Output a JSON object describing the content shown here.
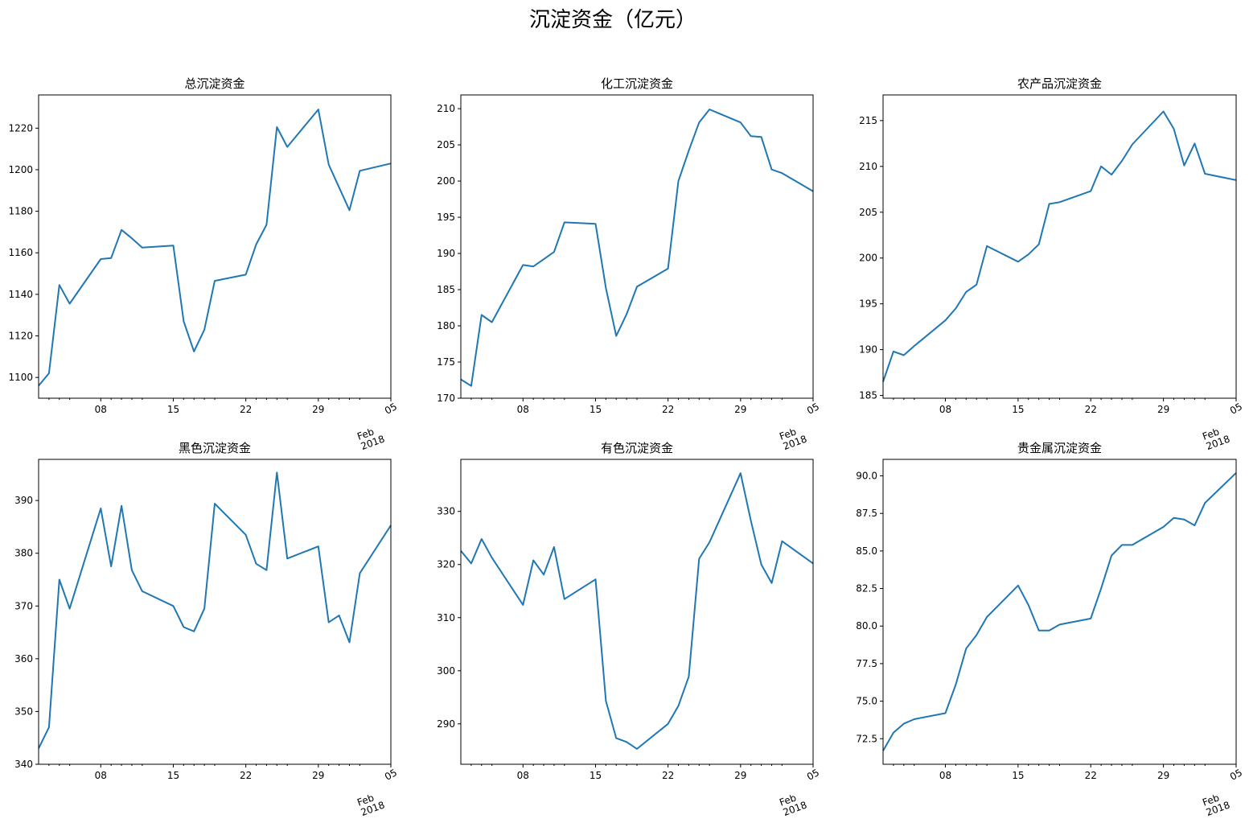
{
  "figure": {
    "title": "沉淀资金（亿元）"
  },
  "chart_data": [
    {
      "type": "line",
      "title": "总沉淀资金",
      "x": [
        "01-02",
        "01-03",
        "01-04",
        "01-05",
        "01-08",
        "01-09",
        "01-10",
        "01-11",
        "01-12",
        "01-15",
        "01-16",
        "01-17",
        "01-18",
        "01-19",
        "01-22",
        "01-23",
        "01-24",
        "01-25",
        "01-26",
        "01-29",
        "01-30",
        "01-31",
        "02-01",
        "02-02",
        "02-05"
      ],
      "values": [
        1096,
        1102,
        1144.5,
        1135.5,
        1157,
        1157.5,
        1171,
        1167,
        1162.5,
        1163.5,
        1127,
        1112.5,
        1123,
        1146.5,
        1149.5,
        1164,
        1173.5,
        1220.5,
        1211,
        1229,
        1202.5,
        1191.5,
        1180.5,
        1199.5,
        1203
      ],
      "ylim": [
        1090,
        1236
      ],
      "yticks": [
        1100,
        1120,
        1140,
        1160,
        1180,
        1200,
        1220
      ],
      "ytick_labels": [
        "1100",
        "1120",
        "1140",
        "1160",
        "1180",
        "1200",
        "1220"
      ],
      "xticks": [
        "08",
        "15",
        "22",
        "29",
        "05"
      ],
      "xsub": [
        "Feb",
        "2018"
      ]
    },
    {
      "type": "line",
      "title": "化工沉淀资金",
      "x": [
        "01-02",
        "01-03",
        "01-04",
        "01-05",
        "01-08",
        "01-09",
        "01-10",
        "01-11",
        "01-12",
        "01-15",
        "01-16",
        "01-17",
        "01-18",
        "01-19",
        "01-22",
        "01-23",
        "01-24",
        "01-25",
        "01-26",
        "01-29",
        "01-30",
        "01-31",
        "02-01",
        "02-02",
        "02-05"
      ],
      "values": [
        172.6,
        171.7,
        181.5,
        180.5,
        188.4,
        188.2,
        189.2,
        190.2,
        194.3,
        194.1,
        185.2,
        178.6,
        181.6,
        185.4,
        187.9,
        200,
        204.2,
        208.1,
        209.9,
        208.1,
        206.2,
        206.1,
        201.6,
        201.1,
        198.6
      ],
      "ylim": [
        170,
        211.9
      ],
      "yticks": [
        170,
        175,
        180,
        185,
        190,
        195,
        200,
        205,
        210
      ],
      "ytick_labels": [
        "170",
        "175",
        "180",
        "185",
        "190",
        "195",
        "200",
        "205",
        "210"
      ],
      "xticks": [
        "08",
        "15",
        "22",
        "29",
        "05"
      ],
      "xsub": [
        "Feb",
        "2018"
      ]
    },
    {
      "type": "line",
      "title": "农产品沉淀资金",
      "x": [
        "01-02",
        "01-03",
        "01-04",
        "01-05",
        "01-08",
        "01-09",
        "01-10",
        "01-11",
        "01-12",
        "01-15",
        "01-16",
        "01-17",
        "01-18",
        "01-19",
        "01-22",
        "01-23",
        "01-24",
        "01-25",
        "01-26",
        "01-29",
        "01-30",
        "01-31",
        "02-01",
        "02-02",
        "02-05"
      ],
      "values": [
        186.5,
        189.8,
        189.4,
        190.4,
        193.2,
        194.5,
        196.3,
        197.1,
        201.3,
        199.6,
        200.4,
        201.5,
        205.9,
        206.1,
        207.3,
        210,
        209.1,
        210.6,
        212.4,
        216,
        214.1,
        210.1,
        212.5,
        209.2,
        208.5
      ],
      "ylim": [
        184.7,
        217.8
      ],
      "yticks": [
        185,
        190,
        195,
        200,
        205,
        210,
        215
      ],
      "ytick_labels": [
        "185",
        "190",
        "195",
        "200",
        "205",
        "210",
        "215"
      ],
      "xticks": [
        "08",
        "15",
        "22",
        "29",
        "05"
      ],
      "xsub": [
        "Feb",
        "2018"
      ]
    },
    {
      "type": "line",
      "title": "黑色沉淀资金",
      "x": [
        "01-02",
        "01-03",
        "01-04",
        "01-05",
        "01-08",
        "01-09",
        "01-10",
        "01-11",
        "01-12",
        "01-15",
        "01-16",
        "01-17",
        "01-18",
        "01-19",
        "01-22",
        "01-23",
        "01-24",
        "01-25",
        "01-26",
        "01-29",
        "01-30",
        "01-31",
        "02-01",
        "02-02",
        "02-05"
      ],
      "values": [
        343,
        347,
        375,
        369.5,
        388.5,
        377.5,
        389,
        376.8,
        372.8,
        370,
        366,
        365.2,
        369.5,
        389.4,
        383.5,
        378,
        376.8,
        395.3,
        379,
        381.3,
        366.9,
        368.2,
        363.1,
        376.2,
        385.3
      ],
      "ylim": [
        340,
        397.8
      ],
      "yticks": [
        340,
        350,
        360,
        370,
        380,
        390
      ],
      "ytick_labels": [
        "340",
        "350",
        "360",
        "370",
        "380",
        "390"
      ],
      "xticks": [
        "08",
        "15",
        "22",
        "29",
        "05"
      ],
      "xsub": [
        "Feb",
        "2018"
      ]
    },
    {
      "type": "line",
      "title": "有色沉淀资金",
      "x": [
        "01-02",
        "01-03",
        "01-04",
        "01-05",
        "01-08",
        "01-09",
        "01-10",
        "01-11",
        "01-12",
        "01-15",
        "01-16",
        "01-17",
        "01-18",
        "01-19",
        "01-22",
        "01-23",
        "01-24",
        "01-25",
        "01-26",
        "01-29",
        "01-30",
        "01-31",
        "02-01",
        "02-02",
        "02-05"
      ],
      "values": [
        322.6,
        320.2,
        324.8,
        321.3,
        312.4,
        320.8,
        318.1,
        323.3,
        313.5,
        317.2,
        294.3,
        287.3,
        286.6,
        285.3,
        290,
        293.4,
        298.9,
        321.1,
        324.2,
        337.2,
        328.2,
        320,
        316.5,
        324.4,
        320.2
      ],
      "ylim": [
        282.4,
        339.8
      ],
      "yticks": [
        290,
        300,
        310,
        320,
        330
      ],
      "ytick_labels": [
        "290",
        "300",
        "310",
        "320",
        "330"
      ],
      "xticks": [
        "08",
        "15",
        "22",
        "29",
        "05"
      ],
      "xsub": [
        "Feb",
        "2018"
      ]
    },
    {
      "type": "line",
      "title": "贵金属沉淀资金",
      "x": [
        "01-02",
        "01-03",
        "01-04",
        "01-05",
        "01-08",
        "01-09",
        "01-10",
        "01-11",
        "01-12",
        "01-15",
        "01-16",
        "01-17",
        "01-18",
        "01-19",
        "01-22",
        "01-23",
        "01-24",
        "01-25",
        "01-26",
        "01-29",
        "01-30",
        "01-31",
        "02-01",
        "02-02",
        "02-05"
      ],
      "values": [
        71.7,
        72.9,
        73.5,
        73.8,
        74.2,
        76.1,
        78.5,
        79.4,
        80.6,
        82.7,
        81.4,
        79.7,
        79.7,
        80.1,
        80.5,
        82.5,
        84.7,
        85.4,
        85.4,
        86.6,
        87.2,
        87.1,
        86.7,
        88.2,
        90.2
      ],
      "ylim": [
        70.8,
        91.1
      ],
      "yticks": [
        72.5,
        75.0,
        77.5,
        80.0,
        82.5,
        85.0,
        87.5,
        90.0
      ],
      "ytick_labels": [
        "72.5",
        "75.0",
        "77.5",
        "80.0",
        "82.5",
        "85.0",
        "87.5",
        "90.0"
      ],
      "xticks": [
        "08",
        "15",
        "22",
        "29",
        "05"
      ],
      "xsub": [
        "Feb",
        "2018"
      ]
    }
  ]
}
